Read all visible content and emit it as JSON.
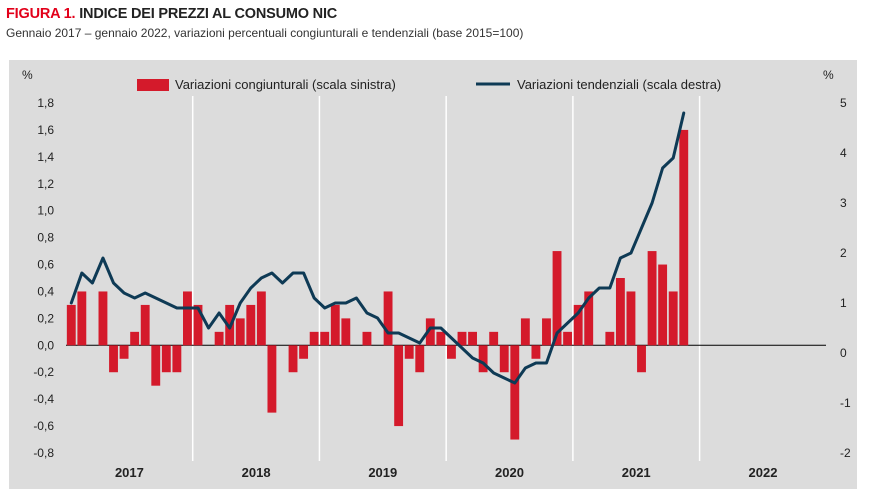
{
  "figure": {
    "label": "FIGURA 1.",
    "title": "INDICE DEI PREZZI AL CONSUMO NIC",
    "subtitle": "Gennaio 2017 – gennaio 2022, variazioni percentuali congiunturali e tendenziali (base 2015=100)"
  },
  "colors": {
    "background": "#dcdcdc",
    "bar": "#d41a2b",
    "line": "#0e3a55",
    "title_accent": "#e2001a"
  },
  "chart_data": {
    "type": "bar",
    "unit_left": "%",
    "unit_right": "%",
    "year_labels": [
      "2017",
      "2018",
      "2019",
      "2020",
      "2021",
      "2022"
    ],
    "yleft_ticks": [
      "1,8",
      "1,6",
      "1,4",
      "1,2",
      "1,0",
      "0,8",
      "0,6",
      "0,4",
      "0,2",
      "0,0",
      "-0,2",
      "-0,4",
      "-0,6",
      "-0,8"
    ],
    "yright_ticks": [
      "5",
      "4",
      "3",
      "2",
      "1",
      "0",
      "-1",
      "-2"
    ],
    "ylim_left": [
      -0.8,
      1.8
    ],
    "ylim_right": [
      -2,
      5
    ],
    "grid": "vertical year separators",
    "legend_position": "top",
    "series": [
      {
        "name": "Variazioni congiunturali (scala sinistra)",
        "type": "bar",
        "axis": "left",
        "values": [
          0.3,
          0.4,
          0.0,
          0.4,
          -0.2,
          -0.1,
          0.1,
          0.3,
          -0.3,
          -0.2,
          -0.2,
          0.4,
          0.3,
          0.0,
          0.1,
          0.3,
          0.2,
          0.3,
          0.4,
          -0.5,
          0.0,
          -0.2,
          -0.1,
          0.1,
          0.1,
          0.3,
          0.2,
          0.0,
          0.1,
          0.0,
          0.4,
          -0.6,
          -0.1,
          -0.2,
          0.2,
          0.1,
          -0.1,
          0.1,
          0.1,
          -0.2,
          0.1,
          -0.2,
          -0.7,
          0.2,
          -0.1,
          0.2,
          0.7,
          0.1,
          0.3,
          0.4,
          0.0,
          0.1,
          0.5,
          0.4,
          -0.2,
          0.7,
          0.6,
          0.4,
          1.6
        ]
      },
      {
        "name": "Variazioni tendenziali (scala destra)",
        "type": "line",
        "axis": "right",
        "values": [
          1.0,
          1.6,
          1.4,
          1.9,
          1.4,
          1.2,
          1.1,
          1.2,
          1.1,
          1.0,
          0.9,
          0.9,
          0.9,
          0.5,
          0.8,
          0.5,
          1.0,
          1.3,
          1.5,
          1.6,
          1.4,
          1.6,
          1.6,
          1.1,
          0.9,
          1.0,
          1.0,
          1.1,
          0.8,
          0.7,
          0.4,
          0.4,
          0.3,
          0.2,
          0.5,
          0.5,
          0.3,
          0.1,
          -0.1,
          -0.2,
          -0.4,
          -0.5,
          -0.6,
          -0.3,
          -0.2,
          -0.2,
          0.4,
          0.6,
          0.8,
          1.1,
          1.3,
          1.3,
          1.9,
          2.0,
          2.5,
          3.0,
          3.7,
          3.9,
          4.8
        ]
      }
    ]
  }
}
